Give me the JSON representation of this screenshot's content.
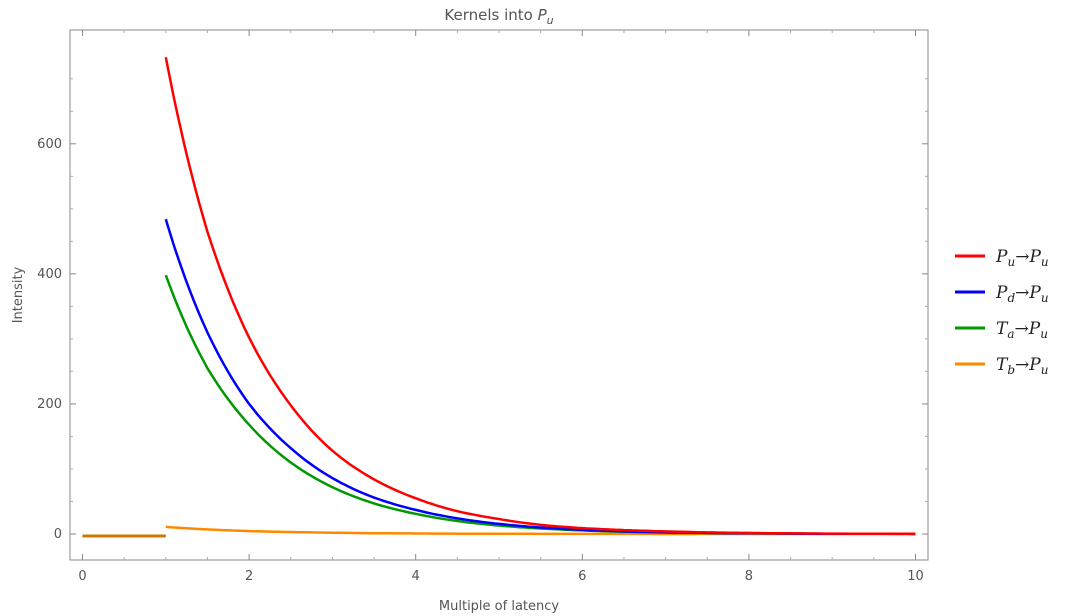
{
  "chart_data": {
    "type": "line",
    "title": "Kernels into P_u",
    "title_parts": {
      "prefix": "Kernels into ",
      "var": "P",
      "sub": "u"
    },
    "xlabel": "Multiple of latency",
    "ylabel": "Intensity",
    "xlim": [
      -0.15,
      10.15
    ],
    "ylim": [
      -40,
      775
    ],
    "x_ticks": [
      0,
      2,
      4,
      6,
      8,
      10
    ],
    "y_ticks": [
      0,
      200,
      400,
      600
    ],
    "legend_position": "right",
    "grid": false,
    "series": [
      {
        "name": "P_u→P_u",
        "label_parts": [
          "P",
          "u",
          "→",
          "P",
          "u"
        ],
        "color": "#ff0000",
        "x": [
          1,
          1.5,
          2,
          2.5,
          3,
          3.5,
          4,
          4.5,
          5,
          5.5,
          6,
          6.5,
          7,
          7.5,
          8,
          8.5,
          9,
          9.5,
          10
        ],
        "y": [
          733,
          465,
          302,
          198,
          128,
          84,
          55,
          35,
          23,
          14,
          9,
          6,
          4,
          2.5,
          1.6,
          1,
          0.6,
          0.4,
          0.2
        ]
      },
      {
        "name": "P_d→P_u",
        "label_parts": [
          "P",
          "d",
          "→",
          "P",
          "u"
        ],
        "color": "#0000ff",
        "x": [
          1,
          1.5,
          2,
          2.5,
          3,
          3.5,
          4,
          4.5,
          5,
          5.5,
          6,
          6.5,
          7,
          7.5,
          8,
          8.5,
          9,
          9.5,
          10
        ],
        "y": [
          484,
          310,
          200,
          132,
          86,
          56,
          37,
          24,
          15.5,
          10,
          6.5,
          4,
          2.6,
          1.7,
          1.1,
          0.7,
          0.4,
          0.3,
          0.2
        ]
      },
      {
        "name": "T_a→P_u",
        "label_parts": [
          "T",
          "a",
          "→",
          "P",
          "u"
        ],
        "color": "#009900",
        "x": [
          1,
          1.5,
          2,
          2.5,
          3,
          3.5,
          4,
          4.5,
          5,
          5.5,
          6,
          6.5,
          7,
          7.5,
          8,
          8.5,
          9,
          9.5,
          10
        ],
        "y": [
          398,
          255,
          168,
          110,
          72,
          47,
          31,
          20,
          13,
          8.5,
          5.5,
          3.5,
          2.3,
          1.5,
          1,
          0.6,
          0.4,
          0.25,
          0.15
        ]
      },
      {
        "name": "T_b→P_u",
        "label_parts": [
          "T",
          "b",
          "→",
          "P",
          "u"
        ],
        "color": "#ff8800",
        "x": [
          1,
          1.5,
          2,
          2.5,
          3,
          3.5,
          4,
          4.5,
          5,
          5.5,
          6,
          6.5,
          7,
          7.5,
          8,
          8.5,
          9,
          9.5,
          10
        ],
        "y": [
          11,
          7,
          4.5,
          3,
          2,
          1.2,
          0.8,
          0.5,
          0.3,
          0.2,
          0.1,
          0.08,
          0.05,
          0.03,
          0.02,
          0.01,
          0.01,
          0,
          0
        ]
      }
    ],
    "pre_latency_segment": {
      "x": [
        0,
        1
      ],
      "y": [
        -3,
        -3
      ],
      "color": "#cc7700"
    }
  }
}
